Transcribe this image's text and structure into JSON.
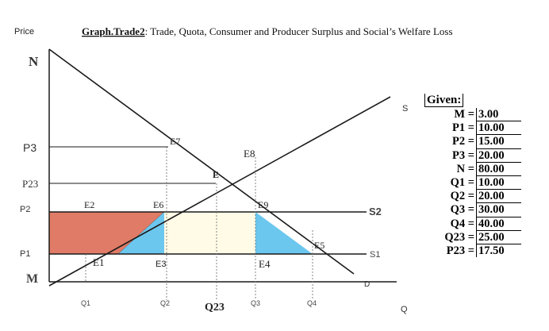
{
  "header": {
    "price_axis": "Price",
    "title_underlined": "Graph.Trade2",
    "title_rest": ": Trade, Quota, Consumer and Producer Surplus and Social’s Welfare Loss"
  },
  "y_labels": {
    "n": "N",
    "p3": "P3",
    "p23": "P23",
    "p2": "P2",
    "p1": "P1",
    "m": "M"
  },
  "x_labels": {
    "q1": "Q1",
    "q2": "Q2",
    "q23": "Q23",
    "q3": "Q3",
    "q4": "Q4",
    "q": "Q"
  },
  "region_labels": {
    "e": "E",
    "e1": "E1",
    "e2": "E2",
    "e3": "E3",
    "e4": "E4",
    "e5": "E5",
    "e6": "E6",
    "e7": "E7",
    "e8": "E8",
    "e9": "E9"
  },
  "curve_labels": {
    "s": "S",
    "s2": "S2",
    "s1": "S1",
    "d": "D"
  },
  "given": {
    "title": "Given:",
    "rows": [
      {
        "key": "M",
        "value": "3.00"
      },
      {
        "key": "P1",
        "value": "10.00"
      },
      {
        "key": "P2",
        "value": "15.00"
      },
      {
        "key": "P3",
        "value": "20.00"
      },
      {
        "key": "N",
        "value": "80.00"
      },
      {
        "key": "Q1",
        "value": "10.00"
      },
      {
        "key": "Q2",
        "value": "20.00"
      },
      {
        "key": "Q3",
        "value": "30.00"
      },
      {
        "key": "Q4",
        "value": "40.00"
      },
      {
        "key": "Q23",
        "value": "25.00"
      },
      {
        "key": "P23",
        "value": "17.50"
      }
    ]
  },
  "colors": {
    "producer_surplus": "#e07b67",
    "deadweight_loss": "#6cc7ee",
    "quota_rent": "#fffbe6",
    "lines": "#1a1a1a"
  }
}
